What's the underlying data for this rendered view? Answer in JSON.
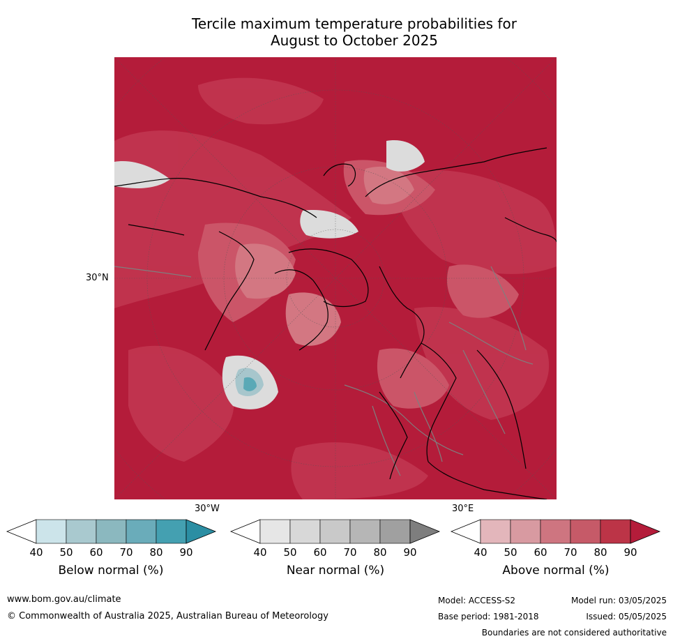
{
  "title": {
    "line1": "Tercile maximum temperature probabilities for",
    "line2": "August to October 2025"
  },
  "map": {
    "projection": "north polar stereographic",
    "lat_labels": [
      "30°N"
    ],
    "lon_labels": [
      "30°W",
      "30°E"
    ],
    "dominant_category": "Above normal",
    "colors": {
      "above_90": "#b41c3a",
      "above_80": "#c1354f",
      "above_70": "#cb5568",
      "above_60": "#d37782",
      "near": "#dcdcdc",
      "below_50": "#a7c6cc",
      "below_70": "#5aa9b6",
      "coast": "#000000",
      "border": "#7f7f7f"
    }
  },
  "legends": [
    {
      "title": "Below normal (%)",
      "ticks": [
        "40",
        "50",
        "60",
        "70",
        "80",
        "90"
      ],
      "colors": [
        "#ffffff",
        "#cce4ea",
        "#a9c9cf",
        "#8bb8bf",
        "#6aacba",
        "#44a0b1",
        "#2b8ea3"
      ]
    },
    {
      "title": "Near normal (%)",
      "ticks": [
        "40",
        "50",
        "60",
        "70",
        "80",
        "90"
      ],
      "colors": [
        "#ffffff",
        "#e6e6e6",
        "#d8d8d8",
        "#c9c9c9",
        "#b6b6b6",
        "#a0a0a0",
        "#7e7e7e"
      ]
    },
    {
      "title": "Above normal (%)",
      "ticks": [
        "40",
        "50",
        "60",
        "70",
        "80",
        "90"
      ],
      "colors": [
        "#ffffff",
        "#e3b6bb",
        "#d89aa1",
        "#ce7580",
        "#c65a68",
        "#bc3447",
        "#b41c3a"
      ]
    }
  ],
  "footer": {
    "website": "www.bom.gov.au/climate",
    "copyright": "© Commonwealth of Australia 2025, Australian Bureau of Meteorology",
    "model": "Model: ACCESS-S2",
    "base_period": "Base period: 1981-2018",
    "model_run": "Model run: 03/05/2025",
    "issued": "Issued: 05/05/2025",
    "disclaimer": "Boundaries are not considered authoritative"
  }
}
